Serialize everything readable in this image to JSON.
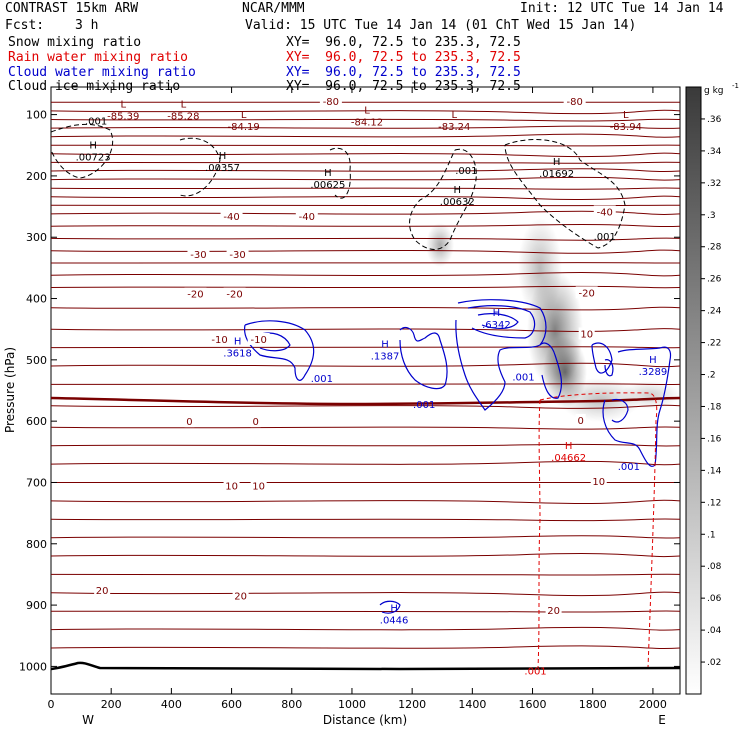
{
  "header": {
    "model": "CONTRAST 15km ARW",
    "org": "NCAR/MMM",
    "init": "Init: 12 UTC Tue 14 Jan 14",
    "fcst_label": "Fcst:",
    "fcst_value": "3 h",
    "valid": "Valid: 15 UTC Tue 14 Jan 14 (01 ChT Wed 15 Jan 14)"
  },
  "fields": [
    {
      "name": "Snow mixing ratio",
      "xy": "XY=  96.0, 72.5 to 235.3, 72.5",
      "color": "#000000"
    },
    {
      "name": "Rain water mixing ratio",
      "xy": "XY=  96.0, 72.5 to 235.3, 72.5",
      "color": "#e00000"
    },
    {
      "name": "Cloud water mixing ratio",
      "xy": "XY=  96.0, 72.5 to 235.3, 72.5",
      "color": "#0000cc"
    },
    {
      "name": "Cloud ice mixing ratio",
      "xy": "XY=  96.0, 72.5 to 235.3, 72.5",
      "color": "#000000"
    }
  ],
  "chart_data": {
    "type": "contour",
    "xlabel": "Distance (km)",
    "ylabel": "Pressure (hPa)",
    "xlim": [
      0,
      2090
    ],
    "ylim": [
      1045,
      55
    ],
    "x_ticks": [
      0,
      200,
      400,
      600,
      800,
      1000,
      1200,
      1400,
      1600,
      1800,
      2000
    ],
    "y_ticks": [
      100,
      200,
      300,
      400,
      500,
      600,
      700,
      800,
      900,
      1000
    ],
    "end_labels": {
      "left": "W",
      "right": "E"
    },
    "colorbar": {
      "unit": "g kg",
      "unit_exp": "-1",
      "ticks": [
        ".02",
        ".04",
        ".06",
        ".08",
        ".1",
        ".12",
        ".14",
        ".16",
        ".18",
        ".2",
        ".22",
        ".24",
        ".26",
        ".28",
        ".3",
        ".32",
        ".34",
        ".36"
      ]
    },
    "temperature_labels": [
      {
        "text": "-80",
        "x": 930,
        "p": 78
      },
      {
        "text": "-80",
        "x": 1740,
        "p": 78
      },
      {
        "text": "-40",
        "x": 600,
        "p": 265
      },
      {
        "text": "-40",
        "x": 850,
        "p": 265
      },
      {
        "text": "-40",
        "x": 1840,
        "p": 258
      },
      {
        "text": "-30",
        "x": 490,
        "p": 327
      },
      {
        "text": "-30",
        "x": 620,
        "p": 327
      },
      {
        "text": "-20",
        "x": 480,
        "p": 392
      },
      {
        "text": "-20",
        "x": 610,
        "p": 392
      },
      {
        "text": "-20",
        "x": 1780,
        "p": 390
      },
      {
        "text": "-10",
        "x": 560,
        "p": 466
      },
      {
        "text": "-10",
        "x": 690,
        "p": 466
      },
      {
        "text": "10",
        "x": 1780,
        "p": 457
      },
      {
        "text": "0",
        "x": 460,
        "p": 600
      },
      {
        "text": "0",
        "x": 680,
        "p": 600
      },
      {
        "text": "0",
        "x": 1760,
        "p": 598
      },
      {
        "text": "10",
        "x": 600,
        "p": 705
      },
      {
        "text": "10",
        "x": 690,
        "p": 705
      },
      {
        "text": "10",
        "x": 1820,
        "p": 698
      },
      {
        "text": "20",
        "x": 170,
        "p": 875
      },
      {
        "text": "20",
        "x": 630,
        "p": 884
      },
      {
        "text": "20",
        "x": 1670,
        "p": 908
      }
    ],
    "extrema": [
      {
        "label": "L",
        "value": "-85.39",
        "x": 240,
        "p": 98,
        "color": "#7a0000"
      },
      {
        "label": "L",
        "value": "-85.28",
        "x": 440,
        "p": 98,
        "color": "#7a0000"
      },
      {
        "label": "L",
        "value": "-84.19",
        "x": 640,
        "p": 115,
        "color": "#7a0000"
      },
      {
        "label": "L",
        "value": "-84.12",
        "x": 1050,
        "p": 108,
        "color": "#7a0000"
      },
      {
        "label": "L",
        "value": "-83.24",
        "x": 1340,
        "p": 115,
        "color": "#7a0000"
      },
      {
        "label": "L",
        "value": "-83.94",
        "x": 1910,
        "p": 115,
        "color": "#7a0000"
      },
      {
        "label": "H",
        "value": ".00723",
        "x": 140,
        "p": 165,
        "color": "#000000"
      },
      {
        "label": "H",
        "value": ".00357",
        "x": 570,
        "p": 182,
        "color": "#000000"
      },
      {
        "label": "H",
        "value": ".00625",
        "x": 920,
        "p": 210,
        "color": "#000000"
      },
      {
        "label": "H",
        "value": ".00632",
        "x": 1350,
        "p": 238,
        "color": "#000000"
      },
      {
        "label": "H",
        "value": ".01692",
        "x": 1680,
        "p": 192,
        "color": "#000000"
      },
      {
        "label": "H",
        "value": ".6342",
        "x": 1480,
        "p": 438,
        "color": "#0000cc"
      },
      {
        "label": "H",
        "value": ".3618",
        "x": 620,
        "p": 485,
        "color": "#0000cc"
      },
      {
        "label": "H",
        "value": ".1387",
        "x": 1110,
        "p": 490,
        "color": "#0000cc"
      },
      {
        "label": "H",
        "value": ".3289",
        "x": 2000,
        "p": 515,
        "color": "#0000cc"
      },
      {
        "label": "H",
        "value": ".0446",
        "x": 1140,
        "p": 920,
        "color": "#0000cc"
      },
      {
        "label": "H",
        "value": ".04662",
        "x": 1720,
        "p": 655,
        "color": "#e00000"
      }
    ],
    "min_labels": [
      {
        "text": ".001",
        "x": 150,
        "p": 110,
        "color": "#000000"
      },
      {
        "text": ".001",
        "x": 1380,
        "p": 190,
        "color": "#000000"
      },
      {
        "text": ".001",
        "x": 1840,
        "p": 298,
        "color": "#000000"
      },
      {
        "text": ".001",
        "x": 900,
        "p": 530,
        "color": "#0000cc"
      },
      {
        "text": ".001",
        "x": 1570,
        "p": 527,
        "color": "#0000cc"
      },
      {
        "text": ".001",
        "x": 1240,
        "p": 572,
        "color": "#0000cc"
      },
      {
        "text": ".001",
        "x": 1920,
        "p": 673,
        "color": "#0000cc"
      },
      {
        "text": ".001",
        "x": 1610,
        "p": 1007,
        "color": "#e00000"
      }
    ]
  }
}
